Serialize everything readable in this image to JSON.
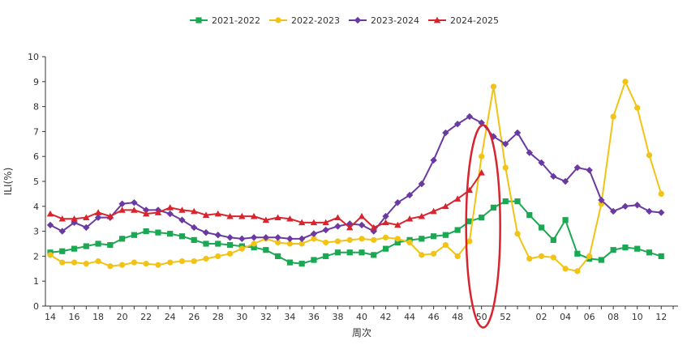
{
  "chart_data": {
    "type": "line",
    "xlabel": "周次",
    "ylabel": "ILI(%)",
    "ylim": [
      0,
      10
    ],
    "yticks": [
      "0",
      "1",
      "2",
      "3",
      "4",
      "5",
      "6",
      "7",
      "8",
      "9",
      "10"
    ],
    "grid": false,
    "legend_position": "top-center",
    "categories": [
      "14",
      "15",
      "16",
      "17",
      "18",
      "19",
      "20",
      "21",
      "22",
      "23",
      "24",
      "25",
      "26",
      "27",
      "28",
      "29",
      "30",
      "31",
      "32",
      "33",
      "34",
      "35",
      "36",
      "37",
      "38",
      "39",
      "40",
      "41",
      "42",
      "43",
      "44",
      "45",
      "46",
      "47",
      "48",
      "49",
      "50",
      "51",
      "52",
      "53",
      "01",
      "02",
      "03",
      "04",
      "05",
      "06",
      "07",
      "08",
      "09",
      "10",
      "11",
      "12",
      "13"
    ],
    "x_tick_labels": [
      "14",
      "16",
      "18",
      "20",
      "22",
      "24",
      "26",
      "28",
      "30",
      "32",
      "34",
      "36",
      "38",
      "40",
      "42",
      "44",
      "46",
      "48",
      "50",
      "52",
      "02",
      "04",
      "06",
      "08",
      "10",
      "12"
    ],
    "series": [
      {
        "name": "2021-2022",
        "color": "#1aa853",
        "marker": "square",
        "values": [
          2.15,
          2.2,
          2.3,
          2.4,
          2.5,
          2.45,
          2.7,
          2.85,
          3.0,
          2.95,
          2.9,
          2.8,
          2.65,
          2.5,
          2.5,
          2.45,
          2.4,
          2.35,
          2.25,
          2.0,
          1.75,
          1.7,
          1.85,
          2.0,
          2.15,
          2.15,
          2.15,
          2.05,
          2.3,
          2.55,
          2.65,
          2.7,
          2.8,
          2.85,
          3.05,
          3.4,
          3.55,
          3.95,
          4.2,
          4.2,
          3.65,
          3.15,
          2.65,
          3.45,
          2.1,
          1.9,
          1.85,
          2.25,
          2.35,
          2.3,
          2.15,
          2.0,
          null
        ]
      },
      {
        "name": "2022-2023",
        "color": "#f2c314",
        "marker": "circle",
        "values": [
          2.05,
          1.75,
          1.75,
          1.7,
          1.8,
          1.6,
          1.65,
          1.75,
          1.7,
          1.65,
          1.75,
          1.8,
          1.8,
          1.9,
          2.0,
          2.1,
          2.3,
          2.5,
          2.7,
          2.55,
          2.5,
          2.5,
          2.7,
          2.55,
          2.6,
          2.65,
          2.7,
          2.65,
          2.75,
          2.7,
          2.55,
          2.05,
          2.1,
          2.45,
          2.0,
          2.6,
          6.0,
          8.8,
          5.55,
          2.9,
          1.9,
          2.0,
          1.95,
          1.5,
          1.4,
          2.0,
          4.1,
          7.6,
          9.0,
          7.95,
          6.05,
          4.5,
          null
        ]
      },
      {
        "name": "2023-2024",
        "color": "#6a3aa2",
        "marker": "diamond",
        "values": [
          3.25,
          3.0,
          3.35,
          3.15,
          3.55,
          3.55,
          4.1,
          4.15,
          3.85,
          3.85,
          3.7,
          3.45,
          3.15,
          2.95,
          2.85,
          2.75,
          2.7,
          2.75,
          2.75,
          2.75,
          2.7,
          2.7,
          2.9,
          3.05,
          3.2,
          3.3,
          3.25,
          3.0,
          3.6,
          4.15,
          4.45,
          4.9,
          5.85,
          6.95,
          7.3,
          7.6,
          7.35,
          6.8,
          6.5,
          6.95,
          6.15,
          5.75,
          5.2,
          5.0,
          5.55,
          5.45,
          4.25,
          3.8,
          4.0,
          4.05,
          3.8,
          3.75,
          null
        ]
      },
      {
        "name": "2024-2025",
        "color": "#d9232d",
        "marker": "triangle",
        "values": [
          3.7,
          3.5,
          3.5,
          3.55,
          3.75,
          3.6,
          3.85,
          3.85,
          3.7,
          3.75,
          3.95,
          3.85,
          3.8,
          3.65,
          3.7,
          3.6,
          3.6,
          3.6,
          3.45,
          3.55,
          3.5,
          3.35,
          3.35,
          3.35,
          3.55,
          3.15,
          3.6,
          3.15,
          3.35,
          3.25,
          3.5,
          3.6,
          3.8,
          4.0,
          4.3,
          4.65,
          5.35,
          null,
          null,
          null,
          null,
          null,
          null,
          null,
          null,
          null,
          null,
          null,
          null,
          null,
          null,
          null,
          null
        ]
      }
    ],
    "annotations": [
      {
        "type": "ellipse",
        "color": "#d9232d",
        "at_category": "50",
        "y_center": 3.2
      }
    ]
  }
}
